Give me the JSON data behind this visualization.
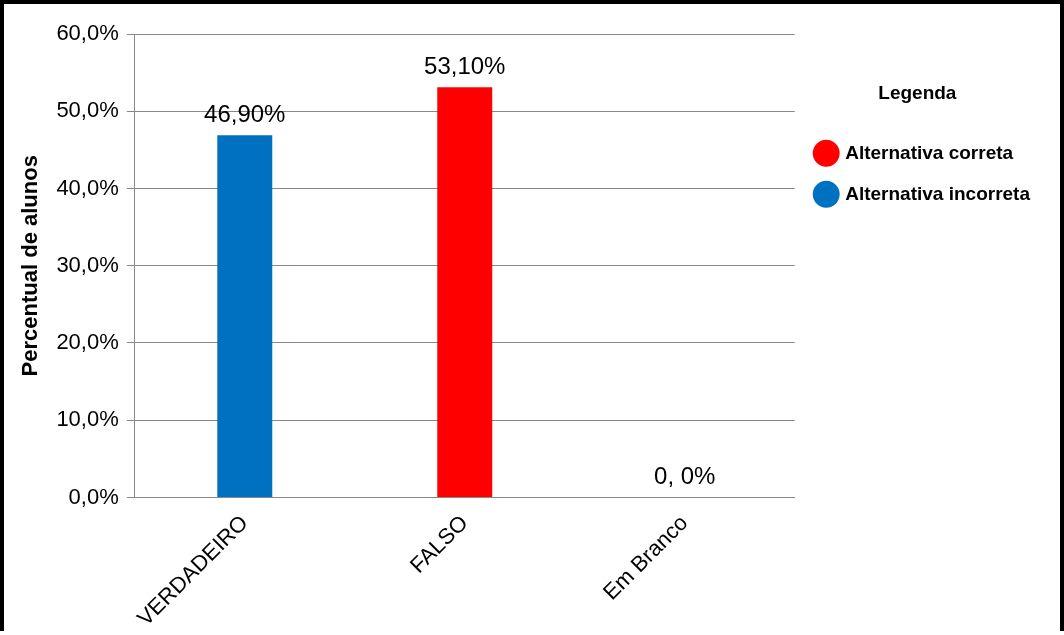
{
  "chart_data": {
    "type": "bar",
    "ylabel": "Percentual de alunos",
    "legend_title": "Legenda",
    "categories": [
      "VERDADEIRO",
      "FALSO",
      "Em Branco"
    ],
    "series": [
      {
        "name": "Alternativa correta",
        "color": "#ff0000",
        "values": [
          null,
          53.1,
          null
        ],
        "value_labels": [
          null,
          "53,10%",
          null
        ]
      },
      {
        "name": "Alternativa incorreta",
        "color": "#0070c0",
        "values": [
          46.9,
          null,
          0
        ],
        "value_labels": [
          "46,90%",
          null,
          "0, 0%"
        ]
      }
    ],
    "ylim": [
      0,
      60
    ],
    "yticks": [
      {
        "value": 0,
        "label": "0,0%"
      },
      {
        "value": 10,
        "label": "10,0%"
      },
      {
        "value": 20,
        "label": "20,0%"
      },
      {
        "value": 30,
        "label": "30,0%"
      },
      {
        "value": 40,
        "label": "40,0%"
      },
      {
        "value": 50,
        "label": "50,0%"
      },
      {
        "value": 60,
        "label": "60,0%"
      }
    ],
    "grid": "y",
    "legend": "right"
  }
}
